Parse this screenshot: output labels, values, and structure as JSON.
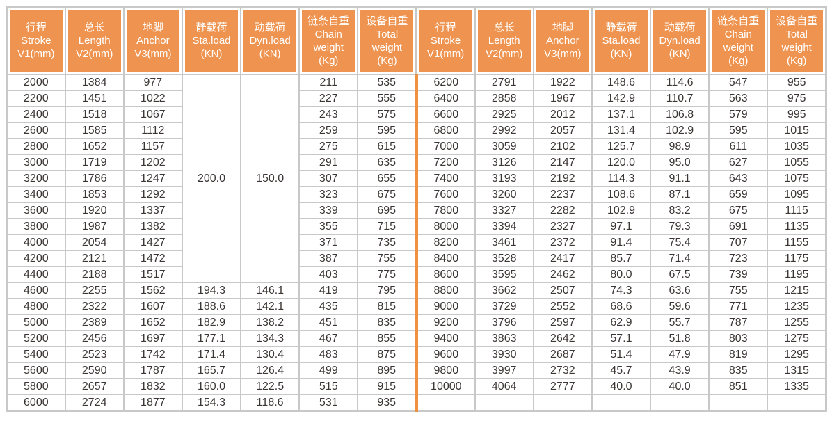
{
  "colors": {
    "header_bg": "#ef9450",
    "divider_orange": "#f0913f",
    "grid_border": "#c8c8c8",
    "data_text": "#3b3534",
    "header_text": "#ffffff"
  },
  "table": {
    "headers": [
      {
        "lines": [
          "行程",
          "Stroke",
          "V1(mm)"
        ]
      },
      {
        "lines": [
          "总长",
          "Length",
          "V2(mm)"
        ]
      },
      {
        "lines": [
          "地脚",
          "Anchor",
          "V3(mm)"
        ]
      },
      {
        "lines": [
          "静载荷",
          "Sta.load",
          "(KN)"
        ]
      },
      {
        "lines": [
          "动载荷",
          "Dyn.load",
          "(KN)"
        ]
      },
      {
        "lines": [
          "链条自重",
          "Chain",
          "weight",
          "(Kg)"
        ]
      },
      {
        "lines": [
          "设备自重",
          "Total",
          "weight",
          "(Kg)"
        ]
      }
    ],
    "merged": {
      "sta_load": "200.0",
      "dyn_load": "150.0",
      "row_span": 13
    },
    "left_rows": [
      [
        "2000",
        "1384",
        "977",
        null,
        null,
        "211",
        "535"
      ],
      [
        "2200",
        "1451",
        "1022",
        null,
        null,
        "227",
        "555"
      ],
      [
        "2400",
        "1518",
        "1067",
        null,
        null,
        "243",
        "575"
      ],
      [
        "2600",
        "1585",
        "1112",
        null,
        null,
        "259",
        "595"
      ],
      [
        "2800",
        "1652",
        "1157",
        null,
        null,
        "275",
        "615"
      ],
      [
        "3000",
        "1719",
        "1202",
        null,
        null,
        "291",
        "635"
      ],
      [
        "3200",
        "1786",
        "1247",
        null,
        null,
        "307",
        "655"
      ],
      [
        "3400",
        "1853",
        "1292",
        null,
        null,
        "323",
        "675"
      ],
      [
        "3600",
        "1920",
        "1337",
        null,
        null,
        "339",
        "695"
      ],
      [
        "3800",
        "1987",
        "1382",
        null,
        null,
        "355",
        "715"
      ],
      [
        "4000",
        "2054",
        "1427",
        null,
        null,
        "371",
        "735"
      ],
      [
        "4200",
        "2121",
        "1472",
        null,
        null,
        "387",
        "755"
      ],
      [
        "4400",
        "2188",
        "1517",
        null,
        null,
        "403",
        "775"
      ],
      [
        "4600",
        "2255",
        "1562",
        "194.3",
        "146.1",
        "419",
        "795"
      ],
      [
        "4800",
        "2322",
        "1607",
        "188.6",
        "142.1",
        "435",
        "815"
      ],
      [
        "5000",
        "2389",
        "1652",
        "182.9",
        "138.2",
        "451",
        "835"
      ],
      [
        "5200",
        "2456",
        "1697",
        "177.1",
        "134.3",
        "467",
        "855"
      ],
      [
        "5400",
        "2523",
        "1742",
        "171.4",
        "130.4",
        "483",
        "875"
      ],
      [
        "5600",
        "2590",
        "1787",
        "165.7",
        "126.4",
        "499",
        "895"
      ],
      [
        "5800",
        "2657",
        "1832",
        "160.0",
        "122.5",
        "515",
        "915"
      ],
      [
        "6000",
        "2724",
        "1877",
        "154.3",
        "118.6",
        "531",
        "935"
      ]
    ],
    "right_rows": [
      [
        "6200",
        "2791",
        "1922",
        "148.6",
        "114.6",
        "547",
        "955"
      ],
      [
        "6400",
        "2858",
        "1967",
        "142.9",
        "110.7",
        "563",
        "975"
      ],
      [
        "6600",
        "2925",
        "2012",
        "137.1",
        "106.8",
        "579",
        "995"
      ],
      [
        "6800",
        "2992",
        "2057",
        "131.4",
        "102.9",
        "595",
        "1015"
      ],
      [
        "7000",
        "3059",
        "2102",
        "125.7",
        "98.9",
        "611",
        "1035"
      ],
      [
        "7200",
        "3126",
        "2147",
        "120.0",
        "95.0",
        "627",
        "1055"
      ],
      [
        "7400",
        "3193",
        "2192",
        "114.3",
        "91.1",
        "643",
        "1075"
      ],
      [
        "7600",
        "3260",
        "2237",
        "108.6",
        "87.1",
        "659",
        "1095"
      ],
      [
        "7800",
        "3327",
        "2282",
        "102.9",
        "83.2",
        "675",
        "1115"
      ],
      [
        "8000",
        "3394",
        "2327",
        "97.1",
        "79.3",
        "691",
        "1135"
      ],
      [
        "8200",
        "3461",
        "2372",
        "91.4",
        "75.4",
        "707",
        "1155"
      ],
      [
        "8400",
        "3528",
        "2417",
        "85.7",
        "71.4",
        "723",
        "1175"
      ],
      [
        "8600",
        "3595",
        "2462",
        "80.0",
        "67.5",
        "739",
        "1195"
      ],
      [
        "8800",
        "3662",
        "2507",
        "74.3",
        "63.6",
        "755",
        "1215"
      ],
      [
        "9000",
        "3729",
        "2552",
        "68.6",
        "59.6",
        "771",
        "1235"
      ],
      [
        "9200",
        "3796",
        "2597",
        "62.9",
        "55.7",
        "787",
        "1255"
      ],
      [
        "9400",
        "3863",
        "2642",
        "57.1",
        "51.8",
        "803",
        "1275"
      ],
      [
        "9600",
        "3930",
        "2687",
        "51.4",
        "47.9",
        "819",
        "1295"
      ],
      [
        "9800",
        "3997",
        "2732",
        "45.7",
        "43.9",
        "835",
        "1315"
      ],
      [
        "10000",
        "4064",
        "2777",
        "40.0",
        "40.0",
        "851",
        "1335"
      ],
      [
        "",
        "",
        "",
        "",
        "",
        "",
        ""
      ]
    ]
  }
}
